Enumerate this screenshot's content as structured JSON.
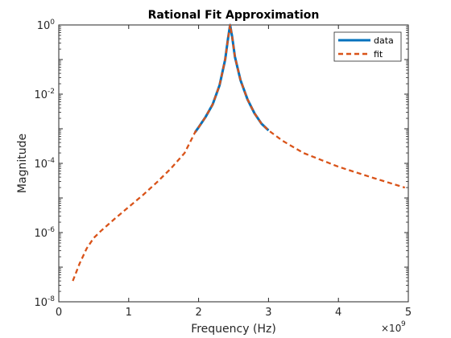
{
  "chart_data": {
    "type": "line",
    "title": "Rational Fit Approximation",
    "xlabel": "Frequency (Hz)",
    "ylabel": "Magnitude",
    "x_multiplier_label": "×10",
    "x_multiplier_exp": "9",
    "xlim": [
      0,
      5
    ],
    "ylim_log10": [
      -8,
      0
    ],
    "y_scale": "log",
    "x_ticks": [
      "0",
      "1",
      "2",
      "3",
      "4",
      "5"
    ],
    "x_tick_values": [
      0,
      1,
      2,
      3,
      4,
      5
    ],
    "y_ticks": [
      {
        "base": "10",
        "exp": "0",
        "exp_value": 0
      },
      {
        "base": "10",
        "exp": "-2",
        "exp_value": -2
      },
      {
        "base": "10",
        "exp": "-4",
        "exp_value": -4
      },
      {
        "base": "10",
        "exp": "-6",
        "exp_value": -6
      },
      {
        "base": "10",
        "exp": "-8",
        "exp_value": -8
      }
    ],
    "legend_position": "top-right",
    "series": [
      {
        "name": "data",
        "color": "#0072BD",
        "style": "solid",
        "x": [
          1.95,
          2.0,
          2.1,
          2.2,
          2.3,
          2.38,
          2.42,
          2.45,
          2.48,
          2.52,
          2.6,
          2.7,
          2.8,
          2.9,
          3.0
        ],
        "y": [
          0.0008,
          0.0011,
          0.0022,
          0.005,
          0.018,
          0.1,
          0.4,
          1.0,
          0.45,
          0.12,
          0.025,
          0.007,
          0.0028,
          0.0014,
          0.0009
        ]
      },
      {
        "name": "fit",
        "color": "#D95319",
        "style": "dashed",
        "x": [
          0.2,
          0.3,
          0.4,
          0.5,
          0.6,
          0.8,
          1.0,
          1.2,
          1.4,
          1.6,
          1.8,
          1.95,
          2.0,
          2.1,
          2.2,
          2.3,
          2.38,
          2.42,
          2.45,
          2.48,
          2.52,
          2.6,
          2.7,
          2.8,
          2.9,
          3.0,
          3.2,
          3.5,
          4.0,
          4.5,
          4.95
        ],
        "y": [
          4e-08,
          1.3e-07,
          3.5e-07,
          7e-07,
          1.1e-06,
          2.5e-06,
          5.5e-06,
          1.2e-05,
          2.8e-05,
          7e-05,
          0.0002,
          0.0008,
          0.0011,
          0.0022,
          0.005,
          0.018,
          0.1,
          0.4,
          1.0,
          0.45,
          0.12,
          0.025,
          0.007,
          0.0028,
          0.0014,
          0.0009,
          0.00045,
          0.0002,
          8e-05,
          3.8e-05,
          2e-05
        ]
      }
    ]
  }
}
